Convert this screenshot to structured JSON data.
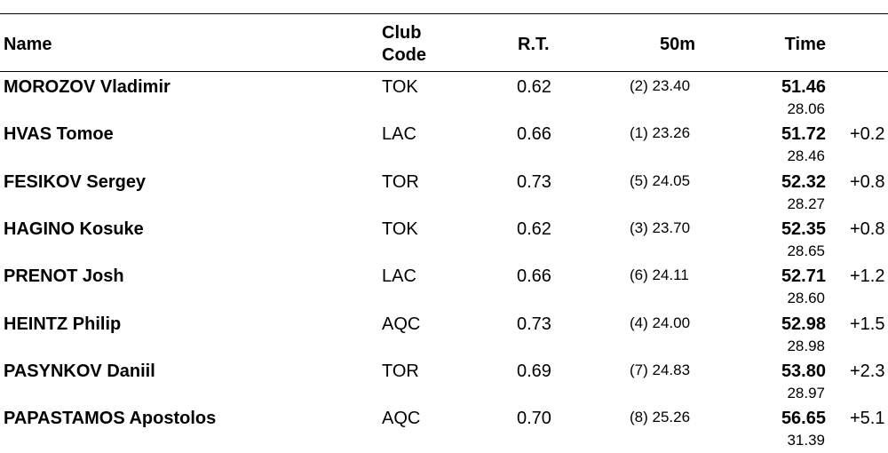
{
  "table": {
    "header": {
      "name": "Name",
      "club": [
        "Club",
        "Code"
      ],
      "rt": "R.T.",
      "split": "50m",
      "time": "Time"
    },
    "rows": [
      {
        "name": "MOROZOV Vladimir",
        "club": "TOK",
        "rt": "0.62",
        "split": "(2) 23.40",
        "time": "51.46",
        "split2": "28.06",
        "diff": null
      },
      {
        "name": "HVAS Tomoe",
        "club": "LAC",
        "rt": "0.66",
        "split": "(1) 23.26",
        "time": "51.72",
        "split2": "28.46",
        "diff": "+0.2"
      },
      {
        "name": "FESIKOV Sergey",
        "club": "TOR",
        "rt": "0.73",
        "split": "(5) 24.05",
        "time": "52.32",
        "split2": "28.27",
        "diff": "+0.8"
      },
      {
        "name": "HAGINO Kosuke",
        "club": "TOK",
        "rt": "0.62",
        "split": "(3) 23.70",
        "time": "52.35",
        "split2": "28.65",
        "diff": "+0.8"
      },
      {
        "name": "PRENOT Josh",
        "club": "LAC",
        "rt": "0.66",
        "split": "(6) 24.11",
        "time": "52.71",
        "split2": "28.60",
        "diff": "+1.2"
      },
      {
        "name": "HEINTZ Philip",
        "club": "AQC",
        "rt": "0.73",
        "split": "(4) 24.00",
        "time": "52.98",
        "split2": "28.98",
        "diff": "+1.5"
      },
      {
        "name": "PASYNKOV Daniil",
        "club": "TOR",
        "rt": "0.69",
        "split": "(7) 24.83",
        "time": "53.80",
        "split2": "28.97",
        "diff": "+2.3"
      },
      {
        "name": "PAPASTAMOS Apostolos",
        "club": "AQC",
        "rt": "0.70",
        "split": "(8) 25.26",
        "time": "56.65",
        "split2": "31.39",
        "diff": "+5.1"
      }
    ]
  }
}
